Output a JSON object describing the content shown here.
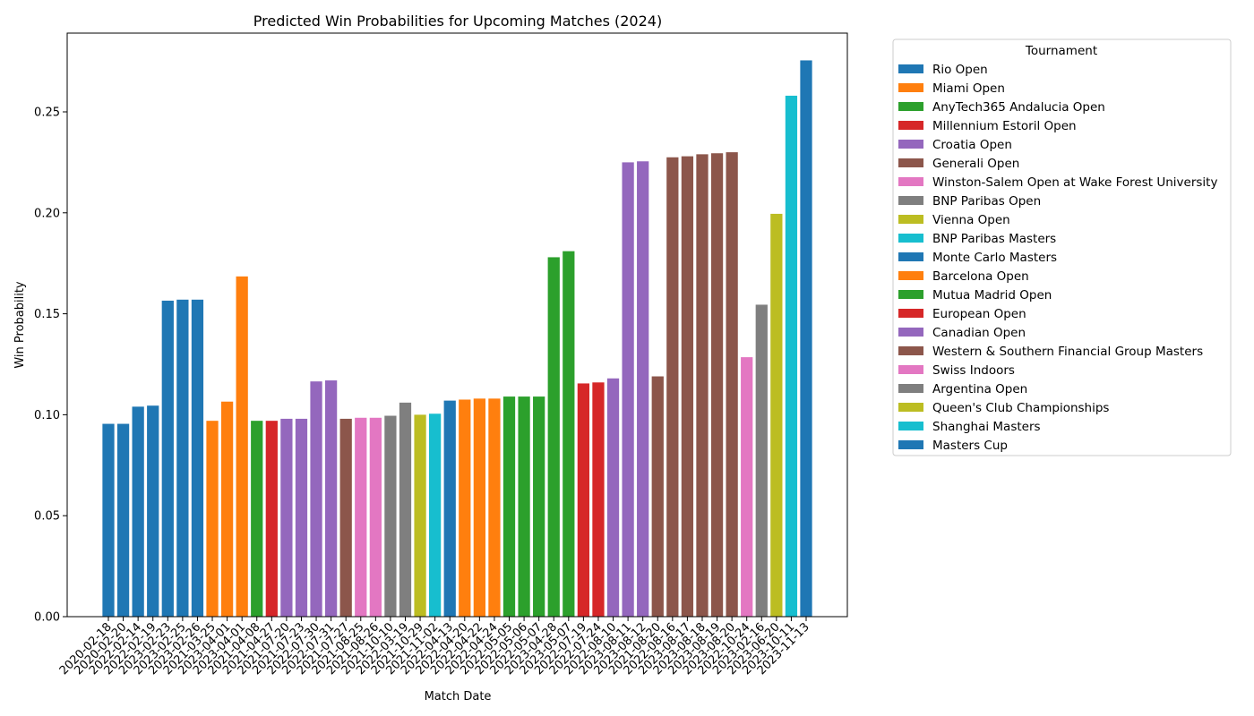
{
  "chart_data": {
    "type": "bar",
    "title": "Predicted Win Probabilities for Upcoming Matches (2024)",
    "xlabel": "Match Date",
    "ylabel": "Win Probability",
    "ylim": [
      0,
      0.289
    ],
    "yticks": [
      "0.00",
      "0.05",
      "0.10",
      "0.15",
      "0.20",
      "0.25"
    ],
    "grid": false,
    "legend_title": "Tournament",
    "legend_position": "outside-right",
    "tournaments": [
      {
        "name": "Rio Open",
        "color": "#1f77b4"
      },
      {
        "name": "Miami Open",
        "color": "#ff7f0e"
      },
      {
        "name": "AnyTech365 Andalucia Open",
        "color": "#2ca02c"
      },
      {
        "name": "Millennium Estoril Open",
        "color": "#d62728"
      },
      {
        "name": "Croatia Open",
        "color": "#9467bd"
      },
      {
        "name": "Generali Open",
        "color": "#8c564b"
      },
      {
        "name": "Winston-Salem Open at Wake Forest University",
        "color": "#e377c2"
      },
      {
        "name": "BNP Paribas Open",
        "color": "#7f7f7f"
      },
      {
        "name": "Vienna Open",
        "color": "#bcbd22"
      },
      {
        "name": "BNP Paribas Masters",
        "color": "#17becf"
      },
      {
        "name": "Monte Carlo Masters",
        "color": "#1f77b4"
      },
      {
        "name": "Barcelona Open",
        "color": "#ff7f0e"
      },
      {
        "name": "Mutua Madrid Open",
        "color": "#2ca02c"
      },
      {
        "name": "European Open",
        "color": "#d62728"
      },
      {
        "name": "Canadian Open",
        "color": "#9467bd"
      },
      {
        "name": "Western & Southern Financial Group Masters",
        "color": "#8c564b"
      },
      {
        "name": "Swiss Indoors",
        "color": "#e377c2"
      },
      {
        "name": "Argentina Open",
        "color": "#7f7f7f"
      },
      {
        "name": "Queen's Club Championships",
        "color": "#bcbd22"
      },
      {
        "name": "Shanghai Masters",
        "color": "#17becf"
      },
      {
        "name": "Masters Cup",
        "color": "#1f77b4"
      }
    ],
    "categories": [
      "2020-02-18",
      "2020-02-20",
      "2022-02-14",
      "2022-02-19",
      "2023-02-23",
      "2023-02-25",
      "2023-02-26",
      "2021-03-25",
      "2023-04-01",
      "2023-04-01",
      "2021-04-08",
      "2021-04-27",
      "2021-07-20",
      "2021-07-23",
      "2022-07-30",
      "2022-07-31",
      "2021-07-27",
      "2021-08-25",
      "2021-08-26",
      "2021-10-10",
      "2022-03-19",
      "2021-10-29",
      "2021-11-02",
      "2022-04-13",
      "2022-04-20",
      "2022-04-22",
      "2022-04-24",
      "2022-05-05",
      "2022-05-06",
      "2022-05-07",
      "2023-04-28",
      "2023-05-07",
      "2022-07-19",
      "2022-07-24",
      "2022-08-10",
      "2023-08-11",
      "2023-08-12",
      "2021-08-20",
      "2022-08-16",
      "2023-08-17",
      "2023-08-18",
      "2023-08-19",
      "2023-08-20",
      "2022-10-24",
      "2023-02-16",
      "2023-06-20",
      "2023-10-11",
      "2023-11-13"
    ],
    "values": [
      0.0955,
      0.0955,
      0.104,
      0.1045,
      0.1565,
      0.157,
      0.157,
      0.097,
      0.1065,
      0.1685,
      0.097,
      0.097,
      0.098,
      0.098,
      0.1165,
      0.117,
      0.098,
      0.0985,
      0.0985,
      0.0995,
      0.106,
      0.1,
      0.1005,
      0.107,
      0.1075,
      0.108,
      0.108,
      0.109,
      0.109,
      0.109,
      0.178,
      0.181,
      0.1155,
      0.116,
      0.118,
      0.225,
      0.2255,
      0.119,
      0.2275,
      0.228,
      0.229,
      0.2295,
      0.23,
      0.1285,
      0.1545,
      0.1995,
      0.258,
      0.2755
    ],
    "bar_tournament": [
      0,
      0,
      0,
      0,
      0,
      0,
      0,
      1,
      1,
      1,
      2,
      3,
      4,
      4,
      4,
      4,
      5,
      6,
      6,
      7,
      7,
      8,
      9,
      10,
      11,
      11,
      11,
      12,
      12,
      12,
      12,
      12,
      13,
      13,
      14,
      14,
      14,
      15,
      15,
      15,
      15,
      15,
      15,
      16,
      17,
      18,
      19,
      20
    ]
  }
}
